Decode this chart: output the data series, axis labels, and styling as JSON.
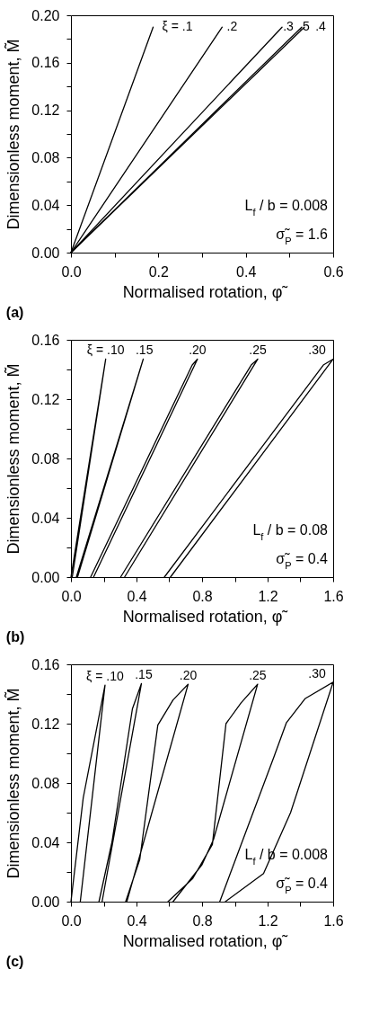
{
  "chart_data": [
    {
      "type": "line",
      "title": "(a)",
      "xlabel": "Normalised rotation, φ̃",
      "ylabel": "Dimensionless moment, M̃",
      "xlim": [
        0,
        0.6
      ],
      "ylim": [
        0,
        0.2
      ],
      "xticks": [
        {
          "value": 0,
          "label": "0.0"
        },
        {
          "value": 0.1,
          "label": null
        },
        0.2,
        {
          "value": 0.3,
          "label": null
        },
        0.4,
        {
          "value": 0.5,
          "label": null
        },
        0.6
      ],
      "yticks": [
        {
          "value": 0,
          "label": "0.00"
        },
        {
          "value": 0.02,
          "label": null
        },
        0.04,
        {
          "value": 0.06,
          "label": null
        },
        0.08,
        {
          "value": 0.1,
          "label": null
        },
        0.12,
        {
          "value": 0.14,
          "label": null
        },
        0.16,
        {
          "value": 0.18,
          "label": null
        },
        {
          "value": 0.2,
          "label": "0.20"
        }
      ],
      "grid": false,
      "marker": "none",
      "line_style": "solid",
      "series": [
        {
          "color": "#000000",
          "x": [
            0,
            0.188
          ],
          "values": [
            0,
            0.19
          ]
        },
        {
          "color": "#000000",
          "x": [
            0,
            0.346
          ],
          "values": [
            0,
            0.19
          ]
        },
        {
          "color": "#000000",
          "x": [
            0,
            0.483
          ],
          "values": [
            0,
            0.19
          ]
        },
        {
          "color": "#000000",
          "x": [
            0,
            0.528
          ],
          "values": [
            0,
            0.19
          ]
        },
        {
          "color": "#000000",
          "x": [
            0,
            0.534
          ],
          "values": [
            0,
            0.19
          ]
        }
      ],
      "annotations": [
        {
          "text": "ξ = .1",
          "x": 0.188,
          "y": 0.19
        },
        {
          "text": ".2",
          "x": 0.346,
          "y": 0.19
        },
        {
          "text": ".3",
          "x": 0.483,
          "y": 0.19
        },
        {
          "text": ".5",
          "x": 0.528,
          "y": 0.19
        },
        {
          "text": ".4",
          "x": 0.534,
          "y": 0.19
        },
        "L$_{f}$ / b = 0.008",
        "σ̃$_{P}$ = 1.6"
      ]
    },
    {
      "type": "line",
      "title": "(b)",
      "xlabel": "Normalised rotation, φ̃",
      "ylabel": "Dimensionless moment, M̃",
      "xlim": [
        0,
        1.6
      ],
      "ylim": [
        0,
        0.16
      ],
      "xticks": [
        {
          "value": 0,
          "label": "0.0"
        },
        {
          "value": 0.2,
          "label": null
        },
        0.4,
        {
          "value": 0.6,
          "label": null
        },
        0.8,
        {
          "value": 1.0,
          "label": null
        },
        1.2,
        {
          "value": 1.4,
          "label": null
        },
        1.6
      ],
      "yticks": [
        {
          "value": 0,
          "label": "0.00"
        },
        {
          "value": 0.02,
          "label": null
        },
        0.04,
        {
          "value": 0.06,
          "label": null
        },
        0.08,
        {
          "value": 0.1,
          "label": null
        },
        0.12,
        {
          "value": 0.14,
          "label": null
        },
        0.16
      ],
      "grid": false,
      "marker": "none",
      "line_style": "solid",
      "series": [
        {
          "color": "#000000",
          "x": [
            0,
            0.212,
            0.008
          ],
          "values": [
            0,
            0.147,
            0
          ]
        },
        {
          "color": "#000000",
          "x": [
            0.033,
            0.441,
            0.04
          ],
          "values": [
            0,
            0.147,
            0
          ]
        },
        {
          "color": "#000000",
          "x": [
            0.12,
            0.74,
            0.772,
            0.138
          ],
          "values": [
            0,
            0.143,
            0.147,
            0
          ]
        },
        {
          "color": "#000000",
          "x": [
            0.303,
            1.1,
            1.14,
            0.327
          ],
          "values": [
            0,
            0.143,
            0.147,
            0
          ]
        },
        {
          "color": "#000000",
          "x": [
            0.57,
            1.54,
            1.6,
            0.607
          ],
          "values": [
            0,
            0.143,
            0.147,
            0
          ]
        }
      ],
      "annotations": [
        {
          "text": "ξ = .10",
          "x": 0.212,
          "y": 0.147
        },
        {
          "text": ".15",
          "x": 0.441,
          "y": 0.147
        },
        {
          "text": ".20",
          "x": 0.772,
          "y": 0.147
        },
        {
          "text": ".25",
          "x": 1.14,
          "y": 0.147
        },
        {
          "text": ".30",
          "x": 1.6,
          "y": 0.147
        },
        "L$_{f}$ / b = 0.08",
        "σ̃$_{P}$ = 0.4"
      ]
    },
    {
      "type": "line",
      "title": "(c)",
      "xlabel": "Normalised rotation, φ̃",
      "ylabel": "Dimensionless moment, M̃",
      "xlim": [
        0,
        1.6
      ],
      "ylim": [
        0,
        0.16
      ],
      "xticks": [
        {
          "value": 0,
          "label": "0.0"
        },
        {
          "value": 0.2,
          "label": null
        },
        0.4,
        {
          "value": 0.6,
          "label": null
        },
        0.8,
        {
          "value": 1.0,
          "label": null
        },
        1.2,
        {
          "value": 1.4,
          "label": null
        },
        1.6
      ],
      "yticks": [
        {
          "value": 0,
          "label": "0.00"
        },
        {
          "value": 0.02,
          "label": null
        },
        0.04,
        {
          "value": 0.06,
          "label": null
        },
        0.08,
        {
          "value": 0.1,
          "label": null
        },
        0.12,
        {
          "value": 0.14,
          "label": null
        },
        0.16
      ],
      "grid": false,
      "marker": "none",
      "line_style": "solid",
      "series": [
        {
          "color": "#000000",
          "x": [
            0,
            0.075,
            0.208,
            0.057
          ],
          "values": [
            0,
            0.07,
            0.146,
            0
          ]
        },
        {
          "color": "#000000",
          "x": [
            0.171,
            0.25,
            0.375,
            0.43,
            0.19
          ],
          "values": [
            0,
            0.04,
            0.13,
            0.147,
            0
          ]
        },
        {
          "color": "#000000",
          "x": [
            0.334,
            0.42,
            0.53,
            0.623,
            0.715,
            0.341
          ],
          "values": [
            0,
            0.0285,
            0.119,
            0.136,
            0.1466,
            0
          ]
        },
        {
          "color": "#000000",
          "x": [
            0.592,
            0.743,
            0.863,
            0.946,
            1.038,
            1.139,
            0.87,
            0.8,
            0.623
          ],
          "values": [
            0,
            0.0156,
            0.0386,
            0.12,
            0.134,
            0.1466,
            0.042,
            0.025,
            0
          ]
        },
        {
          "color": "#000000",
          "x": [
            0.908,
            1.24,
            1.314,
            1.43,
            1.6,
            1.34,
            1.175,
            0.942
          ],
          "values": [
            0,
            0.098,
            0.1205,
            0.137,
            0.148,
            0.06,
            0.019,
            0
          ]
        }
      ],
      "annotations": [
        {
          "text": "ξ = .10",
          "x": 0.208,
          "y": 0.146
        },
        {
          "text": ".15",
          "x": 0.43,
          "y": 0.147
        },
        {
          "text": ".20",
          "x": 0.715,
          "y": 0.1466
        },
        {
          "text": ".25",
          "x": 1.139,
          "y": 0.1466
        },
        {
          "text": ".30",
          "x": 1.6,
          "y": 0.148
        },
        "L$_{f}$ / b = 0.008",
        "σ̃$_{P}$ = 0.4"
      ]
    }
  ]
}
